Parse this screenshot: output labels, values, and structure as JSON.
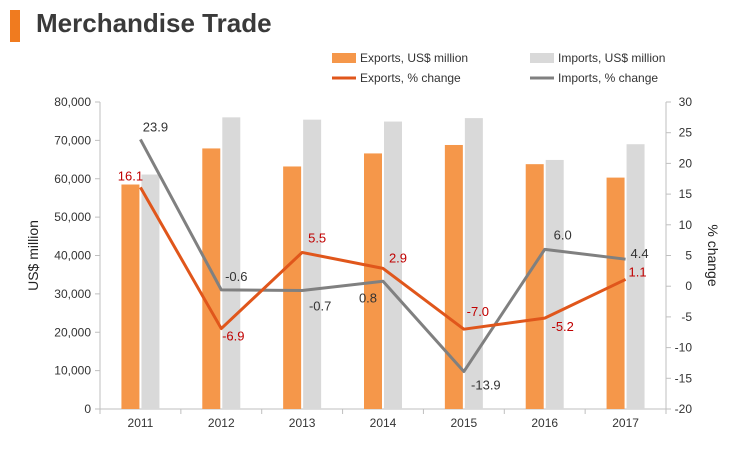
{
  "title": "Merchandise Trade",
  "colors": {
    "accent": "#f07b1f",
    "exports_bar": "#f5974a",
    "imports_bar": "#d9d9d9",
    "exports_line": "#e0561b",
    "imports_line": "#808080",
    "exports_label": "#c00000",
    "imports_label": "#333333",
    "axis": "#bfbfbf",
    "tick_text": "#333333"
  },
  "chart_data": {
    "type": "bar",
    "categories": [
      "2011",
      "2012",
      "2013",
      "2014",
      "2015",
      "2016",
      "2017"
    ],
    "ylabel": "US$ million",
    "y2label": "% change",
    "ylim": [
      0,
      80000
    ],
    "y2lim": [
      -20,
      30
    ],
    "yticks": [
      "0",
      "10,000",
      "20,000",
      "30,000",
      "40,000",
      "50,000",
      "60,000",
      "70,000",
      "80,000"
    ],
    "y2ticks": [
      "-20",
      "-15",
      "-10",
      "-5",
      "0",
      "5",
      "10",
      "15",
      "20",
      "25",
      "30"
    ],
    "grid": false,
    "legend_position": "top",
    "series": [
      {
        "name": "Exports, US$ million",
        "kind": "bar",
        "axis": "left",
        "values": [
          58500,
          67900,
          63200,
          66600,
          68800,
          63800,
          60300
        ]
      },
      {
        "name": "Imports, US$ million",
        "kind": "bar",
        "axis": "left",
        "values": [
          61100,
          76000,
          75400,
          74900,
          75800,
          64900,
          69000
        ]
      },
      {
        "name": "Exports, % change",
        "kind": "line",
        "axis": "right",
        "values": [
          16.1,
          -6.9,
          5.5,
          2.9,
          -7.0,
          -5.2,
          1.1
        ],
        "labels": [
          "16.1",
          "-6.9",
          "5.5",
          "2.9",
          "-7.0",
          "-5.2",
          "1.1"
        ]
      },
      {
        "name": "Imports, % change",
        "kind": "line",
        "axis": "right",
        "values": [
          23.9,
          -0.6,
          -0.7,
          0.8,
          -13.9,
          6.0,
          4.4
        ],
        "labels": [
          "23.9",
          "-0.6",
          "-0.7",
          "0.8",
          "-13.9",
          "6.0",
          "4.4"
        ]
      }
    ]
  }
}
